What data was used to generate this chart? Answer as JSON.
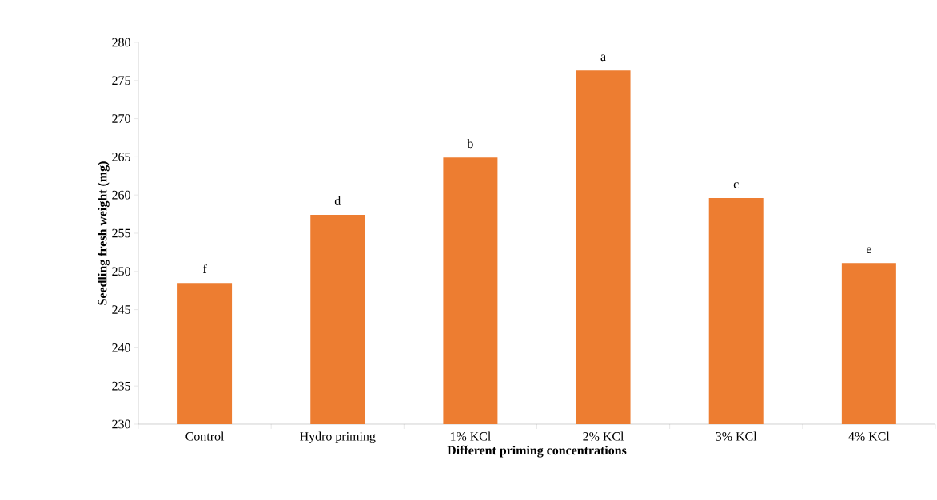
{
  "chart_data": {
    "type": "bar",
    "xlabel": "Different priming concentrations",
    "ylabel": "Seedling fresh weight (mg)",
    "categories": [
      "Control",
      "Hydro priming",
      "1% KCl",
      "2% KCl",
      "3% KCl",
      "4% KCl"
    ],
    "values": [
      248.5,
      257.4,
      264.9,
      276.3,
      259.6,
      251.1
    ],
    "color": "#ed7d31",
    "ylim": [
      230,
      280
    ],
    "yticks": [
      230,
      235,
      240,
      245,
      250,
      255,
      260,
      265,
      270,
      275,
      280
    ],
    "annotations": [
      {
        "text": "f",
        "x": "Control",
        "y": 248.5
      },
      {
        "text": "d",
        "x": "Hydro priming",
        "y": 257.4
      },
      {
        "text": "b",
        "x": "1% KCl",
        "y": 264.9
      },
      {
        "text": "a",
        "x": "2% KCl",
        "y": 276.3
      },
      {
        "text": "c",
        "x": "3% KCl",
        "y": 259.6
      },
      {
        "text": "e",
        "x": "4% KCl",
        "y": 251.1
      }
    ]
  }
}
